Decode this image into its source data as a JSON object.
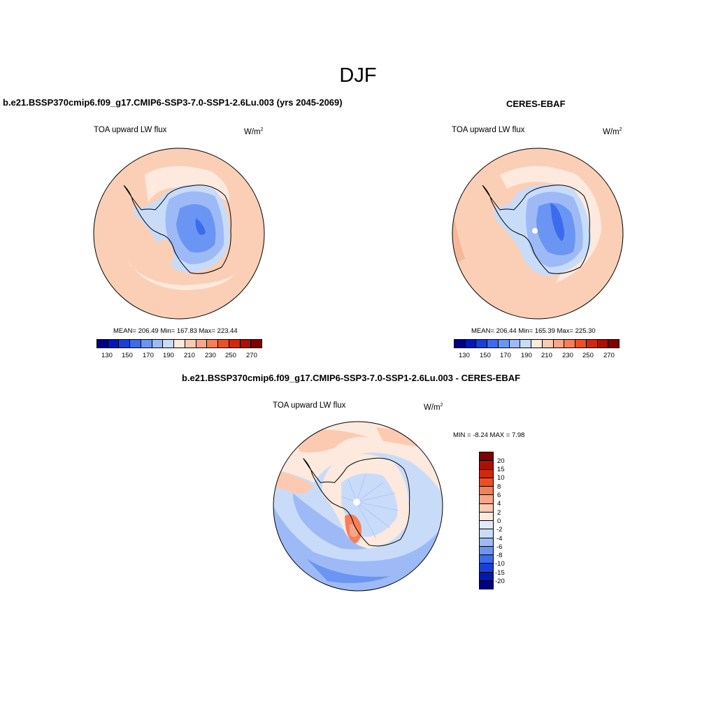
{
  "title": "DJF",
  "panels": [
    {
      "case_title": "b.e21.BSSP370cmip6.f09_g17.CMIP6-SSP3-7.0-SSP1-2.6Lu.003 (yrs 2045-2069)",
      "variable": "TOA upward LW flux",
      "units": "W/m",
      "units_sup": "2",
      "stats": "MEAN= 206.49  Min= 167.83  Max= 223.44",
      "colorbar_ticks": [
        "130",
        "150",
        "170",
        "190",
        "210",
        "230",
        "250",
        "270"
      ]
    },
    {
      "case_title": "CERES-EBAF",
      "variable": "TOA upward LW flux",
      "units": "W/m",
      "units_sup": "2",
      "stats": "MEAN= 206.44  Min= 165.39  Max= 225.30",
      "colorbar_ticks": [
        "130",
        "150",
        "170",
        "190",
        "210",
        "230",
        "250",
        "270"
      ]
    }
  ],
  "diff_panel": {
    "case_title": "b.e21.BSSP370cmip6.f09_g17.CMIP6-SSP3-7.0-SSP1-2.6Lu.003 - CERES-EBAF",
    "variable": "TOA upward LW flux",
    "units": "W/m",
    "units_sup": "2",
    "stats": "MIN =  -8.24 MAX =   7.98",
    "colorbar_ticks": [
      "20",
      "15",
      "10",
      "8",
      "6",
      "4",
      "2",
      "0",
      "-2",
      "-4",
      "-6",
      "-8",
      "-10",
      "-15",
      "-20"
    ]
  },
  "colors": {
    "abs_palette": [
      "#000083",
      "#0019b3",
      "#1a3fd6",
      "#3d6bef",
      "#6b95f3",
      "#9dbaf7",
      "#c8dcfa",
      "#fde9dd",
      "#fccab1",
      "#f9a687",
      "#f67e58",
      "#ec4f27",
      "#d0280e",
      "#a81204",
      "#7f0000"
    ],
    "diff_palette": [
      "#7f0000",
      "#a81204",
      "#d0280e",
      "#ec4f27",
      "#f67e58",
      "#f9a687",
      "#fccab1",
      "#fde9dd",
      "#dfeafc",
      "#c8dcfa",
      "#9dbaf7",
      "#6b95f3",
      "#3d6bef",
      "#1a3fd6",
      "#0019b3",
      "#000083"
    ]
  }
}
